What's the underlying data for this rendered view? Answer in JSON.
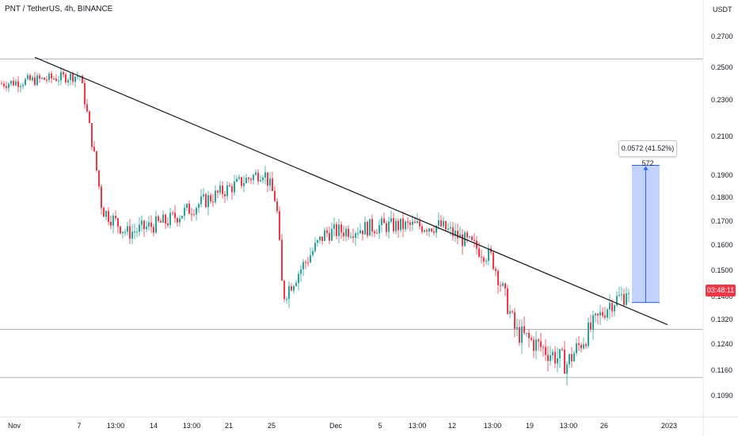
{
  "header": {
    "title": "PNT / TetherUS, 4h, BINANCE"
  },
  "price_axis": {
    "unit": "USDT",
    "ticks": [
      "0.2700",
      "0.2500",
      "0.2300",
      "0.2100",
      "0.1900",
      "0.1800",
      "0.1700",
      "0.1600",
      "0.1500",
      "0.1400",
      "0.1320",
      "0.1240",
      "0.1160",
      "0.1090"
    ]
  },
  "time_axis": {
    "ticks": [
      "Nov",
      "7",
      "13:00",
      "14",
      "13:00",
      "21",
      "25",
      "Dec",
      "5",
      "13:00",
      "12",
      "13:00",
      "19",
      "13:00",
      "26",
      "2023"
    ]
  },
  "measure": {
    "label": "0.0572 (41.52%) 572"
  },
  "current_price_tag": {
    "label": "03:48:11"
  },
  "colors": {
    "up": "#26a69a",
    "down": "#f23645",
    "trendline": "#131722",
    "measure_fill": "#2962ff",
    "horizontal_line": "#9598a1"
  },
  "chart_data": {
    "type": "candlestick",
    "symbol": "PNT / TetherUS",
    "interval": "4h",
    "exchange": "BINANCE",
    "y_unit": "USDT",
    "x_range": [
      "Nov",
      "2023"
    ],
    "y_range": [
      0.105,
      0.285
    ],
    "approx_close_path": [
      {
        "x": "Nov",
        "y": 0.24
      },
      {
        "x": "7",
        "y": 0.245
      },
      {
        "x": "13:00",
        "y": 0.175
      },
      {
        "x": "14",
        "y": 0.165
      },
      {
        "x": "21",
        "y": 0.17
      },
      {
        "x": "21-late",
        "y": 0.192
      },
      {
        "x": "25",
        "y": 0.178
      },
      {
        "x": "25-drop",
        "y": 0.14
      },
      {
        "x": "Dec",
        "y": 0.165
      },
      {
        "x": "5",
        "y": 0.168
      },
      {
        "x": "12",
        "y": 0.168
      },
      {
        "x": "13:00",
        "y": 0.155
      },
      {
        "x": "19",
        "y": 0.128
      },
      {
        "x": "13:00",
        "y": 0.118
      },
      {
        "x": "26",
        "y": 0.138
      },
      {
        "x": "last",
        "y": 0.1412
      }
    ],
    "horizontal_levels": [
      0.2555,
      0.1288,
      0.114
    ],
    "trendline": {
      "start": {
        "x": "Nov",
        "y": 0.2565
      },
      "end": {
        "x": "2023",
        "y": 0.1303
      }
    },
    "measure_range": {
      "from": 0.1379,
      "to": 0.1951,
      "change": 0.0572,
      "change_pct": 41.52,
      "bars": 572
    },
    "current_price_countdown": "03:48:11",
    "grid": false,
    "legend": "none"
  }
}
